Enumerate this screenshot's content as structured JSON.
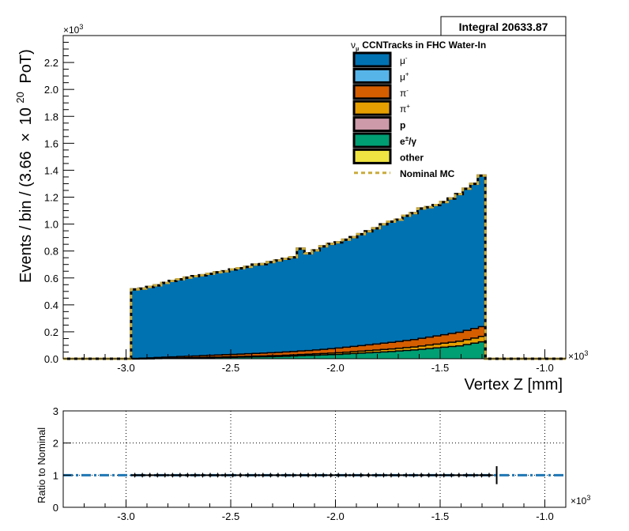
{
  "stats_box": {
    "label": "Integral 20633.87"
  },
  "chart_data": [
    {
      "type": "area",
      "subtype": "stacked-step-histogram",
      "title": "",
      "xlabel": "Vertex Z [mm]",
      "ylabel_parts": {
        "pre": "Events / bin / (3.66",
        "times": "×",
        "base": "10",
        "exp": "20",
        "post": "PoT)"
      },
      "x_multiplier": "×10",
      "x_multiplier_exp": "3",
      "y_multiplier": "×10",
      "y_multiplier_exp": "3",
      "xlim": [
        -3.3,
        -0.9
      ],
      "ylim": [
        0,
        2.4
      ],
      "x_ticks": [
        -3.0,
        -2.5,
        -2.0,
        -1.5,
        -1.0
      ],
      "x_tick_labels": [
        "-3.0",
        "-2.5",
        "-2.0",
        "-1.5",
        "-1.0"
      ],
      "y_ticks": [
        0,
        0.2,
        0.4,
        0.6,
        0.8,
        1.0,
        1.2,
        1.4,
        1.6,
        1.8,
        2.0,
        2.2
      ],
      "y_tick_labels": [
        "0.0",
        "0.2",
        "0.4",
        "0.6",
        "0.8",
        "1.0",
        "1.2",
        "1.4",
        "1.6",
        "1.8",
        "2.0",
        "2.2"
      ],
      "grid": false,
      "legend_title_parts": {
        "nu": "ν",
        "sub": "μ",
        "text": "CCNTracks in FHC Water-In"
      },
      "legend_position": "top-right",
      "x_bin_edges": [
        -3.3,
        -3.264,
        -3.228,
        -3.192,
        -3.156,
        -3.12,
        -3.084,
        -3.048,
        -3.012,
        -2.976,
        -2.94,
        -2.904,
        -2.868,
        -2.832,
        -2.796,
        -2.76,
        -2.724,
        -2.688,
        -2.652,
        -2.616,
        -2.58,
        -2.544,
        -2.508,
        -2.472,
        -2.436,
        -2.4,
        -2.364,
        -2.328,
        -2.292,
        -2.256,
        -2.22,
        -2.184,
        -2.148,
        -2.112,
        -2.076,
        -2.04,
        -2.004,
        -1.968,
        -1.932,
        -1.896,
        -1.86,
        -1.824,
        -1.788,
        -1.752,
        -1.716,
        -1.68,
        -1.644,
        -1.608,
        -1.572,
        -1.536,
        -1.5,
        -1.464,
        -1.428,
        -1.392,
        -1.356,
        -1.32,
        -1.284,
        -1.248,
        -1.212,
        -1.176,
        -1.14,
        -1.104,
        -1.068,
        -1.032,
        -0.996,
        -0.96,
        -0.924,
        -0.9
      ],
      "series": [
        {
          "name": "e",
          "name_sup": "±",
          "name_tail": "/γ",
          "color": "#009e73",
          "values": [
            0,
            0,
            0,
            0,
            0,
            0,
            0,
            0,
            0,
            0.002,
            0.003,
            0.004,
            0.005,
            0.006,
            0.007,
            0.008,
            0.009,
            0.01,
            0.011,
            0.012,
            0.013,
            0.014,
            0.015,
            0.016,
            0.017,
            0.018,
            0.019,
            0.02,
            0.021,
            0.023,
            0.025,
            0.027,
            0.029,
            0.031,
            0.033,
            0.035,
            0.037,
            0.04,
            0.043,
            0.046,
            0.049,
            0.052,
            0.055,
            0.058,
            0.062,
            0.066,
            0.07,
            0.075,
            0.08,
            0.085,
            0.09,
            0.095,
            0.1,
            0.11,
            0.12,
            0.13,
            0,
            0,
            0,
            0,
            0,
            0,
            0,
            0,
            0,
            0,
            0
          ]
        },
        {
          "name": "π",
          "name_sup": "+",
          "color": "#e69f00",
          "values": [
            0,
            0,
            0,
            0,
            0,
            0,
            0,
            0,
            0,
            0.001,
            0.001,
            0.001,
            0.002,
            0.002,
            0.002,
            0.003,
            0.003,
            0.003,
            0.004,
            0.004,
            0.004,
            0.005,
            0.005,
            0.005,
            0.006,
            0.006,
            0.006,
            0.007,
            0.007,
            0.008,
            0.008,
            0.009,
            0.009,
            0.01,
            0.01,
            0.011,
            0.012,
            0.013,
            0.014,
            0.015,
            0.016,
            0.017,
            0.018,
            0.019,
            0.02,
            0.021,
            0.022,
            0.024,
            0.026,
            0.028,
            0.03,
            0.032,
            0.034,
            0.036,
            0.038,
            0.04,
            0,
            0,
            0,
            0,
            0,
            0,
            0,
            0,
            0,
            0,
            0
          ]
        },
        {
          "name": "π",
          "name_sup": "-",
          "color": "#d55e00",
          "values": [
            0,
            0,
            0,
            0,
            0,
            0,
            0,
            0,
            0,
            0.004,
            0.005,
            0.006,
            0.007,
            0.008,
            0.009,
            0.01,
            0.011,
            0.012,
            0.013,
            0.014,
            0.015,
            0.016,
            0.017,
            0.018,
            0.019,
            0.02,
            0.021,
            0.022,
            0.023,
            0.024,
            0.025,
            0.026,
            0.027,
            0.029,
            0.031,
            0.033,
            0.035,
            0.037,
            0.039,
            0.041,
            0.043,
            0.045,
            0.047,
            0.049,
            0.051,
            0.053,
            0.055,
            0.057,
            0.059,
            0.061,
            0.063,
            0.065,
            0.067,
            0.069,
            0.071,
            0.073,
            0,
            0,
            0,
            0,
            0,
            0,
            0,
            0,
            0,
            0,
            0
          ]
        },
        {
          "name": "μ",
          "name_sup": "-",
          "color": "#0072b2",
          "values": [
            0,
            0,
            0,
            0,
            0,
            0,
            0,
            0,
            0,
            0.508,
            0.512,
            0.522,
            0.531,
            0.547,
            0.56,
            0.569,
            0.579,
            0.588,
            0.592,
            0.601,
            0.61,
            0.614,
            0.626,
            0.633,
            0.64,
            0.655,
            0.657,
            0.668,
            0.679,
            0.687,
            0.695,
            0.755,
            0.718,
            0.735,
            0.761,
            0.774,
            0.78,
            0.794,
            0.807,
            0.823,
            0.838,
            0.855,
            0.878,
            0.892,
            0.9,
            0.922,
            0.934,
            0.96,
            0.96,
            0.967,
            0.98,
            0.998,
            1.022,
            1.047,
            1.07,
            1.117,
            0,
            0,
            0,
            0,
            0,
            0,
            0,
            0,
            0,
            0,
            0
          ]
        },
        {
          "name": "μ",
          "name_sup": "+",
          "color": "#56b4e9",
          "values": []
        },
        {
          "name": "p",
          "name_sup": "",
          "color": "#cc9aa8",
          "values": []
        },
        {
          "name": "other",
          "name_sup": "",
          "color": "#f0e442",
          "values": []
        }
      ],
      "legend_order": [
        "μ-",
        "μ+",
        "π-",
        "π+",
        "p",
        "e±/γ",
        "other",
        "Nominal MC"
      ],
      "nominal_mc": {
        "name": "Nominal MC",
        "color": "#c9ab3d",
        "style": "dashed"
      }
    },
    {
      "type": "scatter",
      "subtype": "ratio-with-errorbars",
      "ylabel": "Ratio to Nominal",
      "x_multiplier": "×10",
      "x_multiplier_exp": "3",
      "xlim": [
        -3.3,
        -0.9
      ],
      "ylim": [
        0,
        3
      ],
      "x_ticks": [
        -3.0,
        -2.5,
        -2.0,
        -1.5,
        -1.0
      ],
      "x_tick_labels": [
        "-3.0",
        "-2.5",
        "-2.0",
        "-1.5",
        "-1.0"
      ],
      "y_ticks": [
        0,
        1,
        2,
        3
      ],
      "y_tick_labels": [
        "0",
        "1",
        "2",
        "3"
      ],
      "grid": true,
      "reference_line": {
        "y": 1,
        "color": "#1f77b4",
        "style": "dash-dot"
      },
      "x": [
        -2.958,
        -2.922,
        -2.886,
        -2.85,
        -2.814,
        -2.778,
        -2.742,
        -2.706,
        -2.67,
        -2.634,
        -2.598,
        -2.562,
        -2.526,
        -2.49,
        -2.454,
        -2.418,
        -2.382,
        -2.346,
        -2.31,
        -2.274,
        -2.238,
        -2.202,
        -2.166,
        -2.13,
        -2.094,
        -2.058,
        -2.022,
        -1.986,
        -1.95,
        -1.914,
        -1.878,
        -1.842,
        -1.806,
        -1.77,
        -1.734,
        -1.698,
        -1.662,
        -1.626,
        -1.59,
        -1.554,
        -1.518,
        -1.482,
        -1.446,
        -1.41,
        -1.374,
        -1.338,
        -1.302,
        -1.266
      ],
      "y": [
        1,
        1,
        1,
        1,
        1,
        1,
        1,
        1,
        1,
        1,
        1,
        1,
        1,
        1,
        1,
        1,
        1,
        1,
        1,
        1,
        1,
        1,
        1,
        1,
        1,
        1,
        1,
        1,
        1,
        1,
        1,
        1,
        1,
        1,
        1,
        1,
        1,
        1,
        1,
        1,
        1,
        1,
        1,
        1,
        1,
        1,
        1,
        1
      ],
      "big_error_point": {
        "x": -1.23,
        "y": 1,
        "err": 0.28
      }
    }
  ]
}
